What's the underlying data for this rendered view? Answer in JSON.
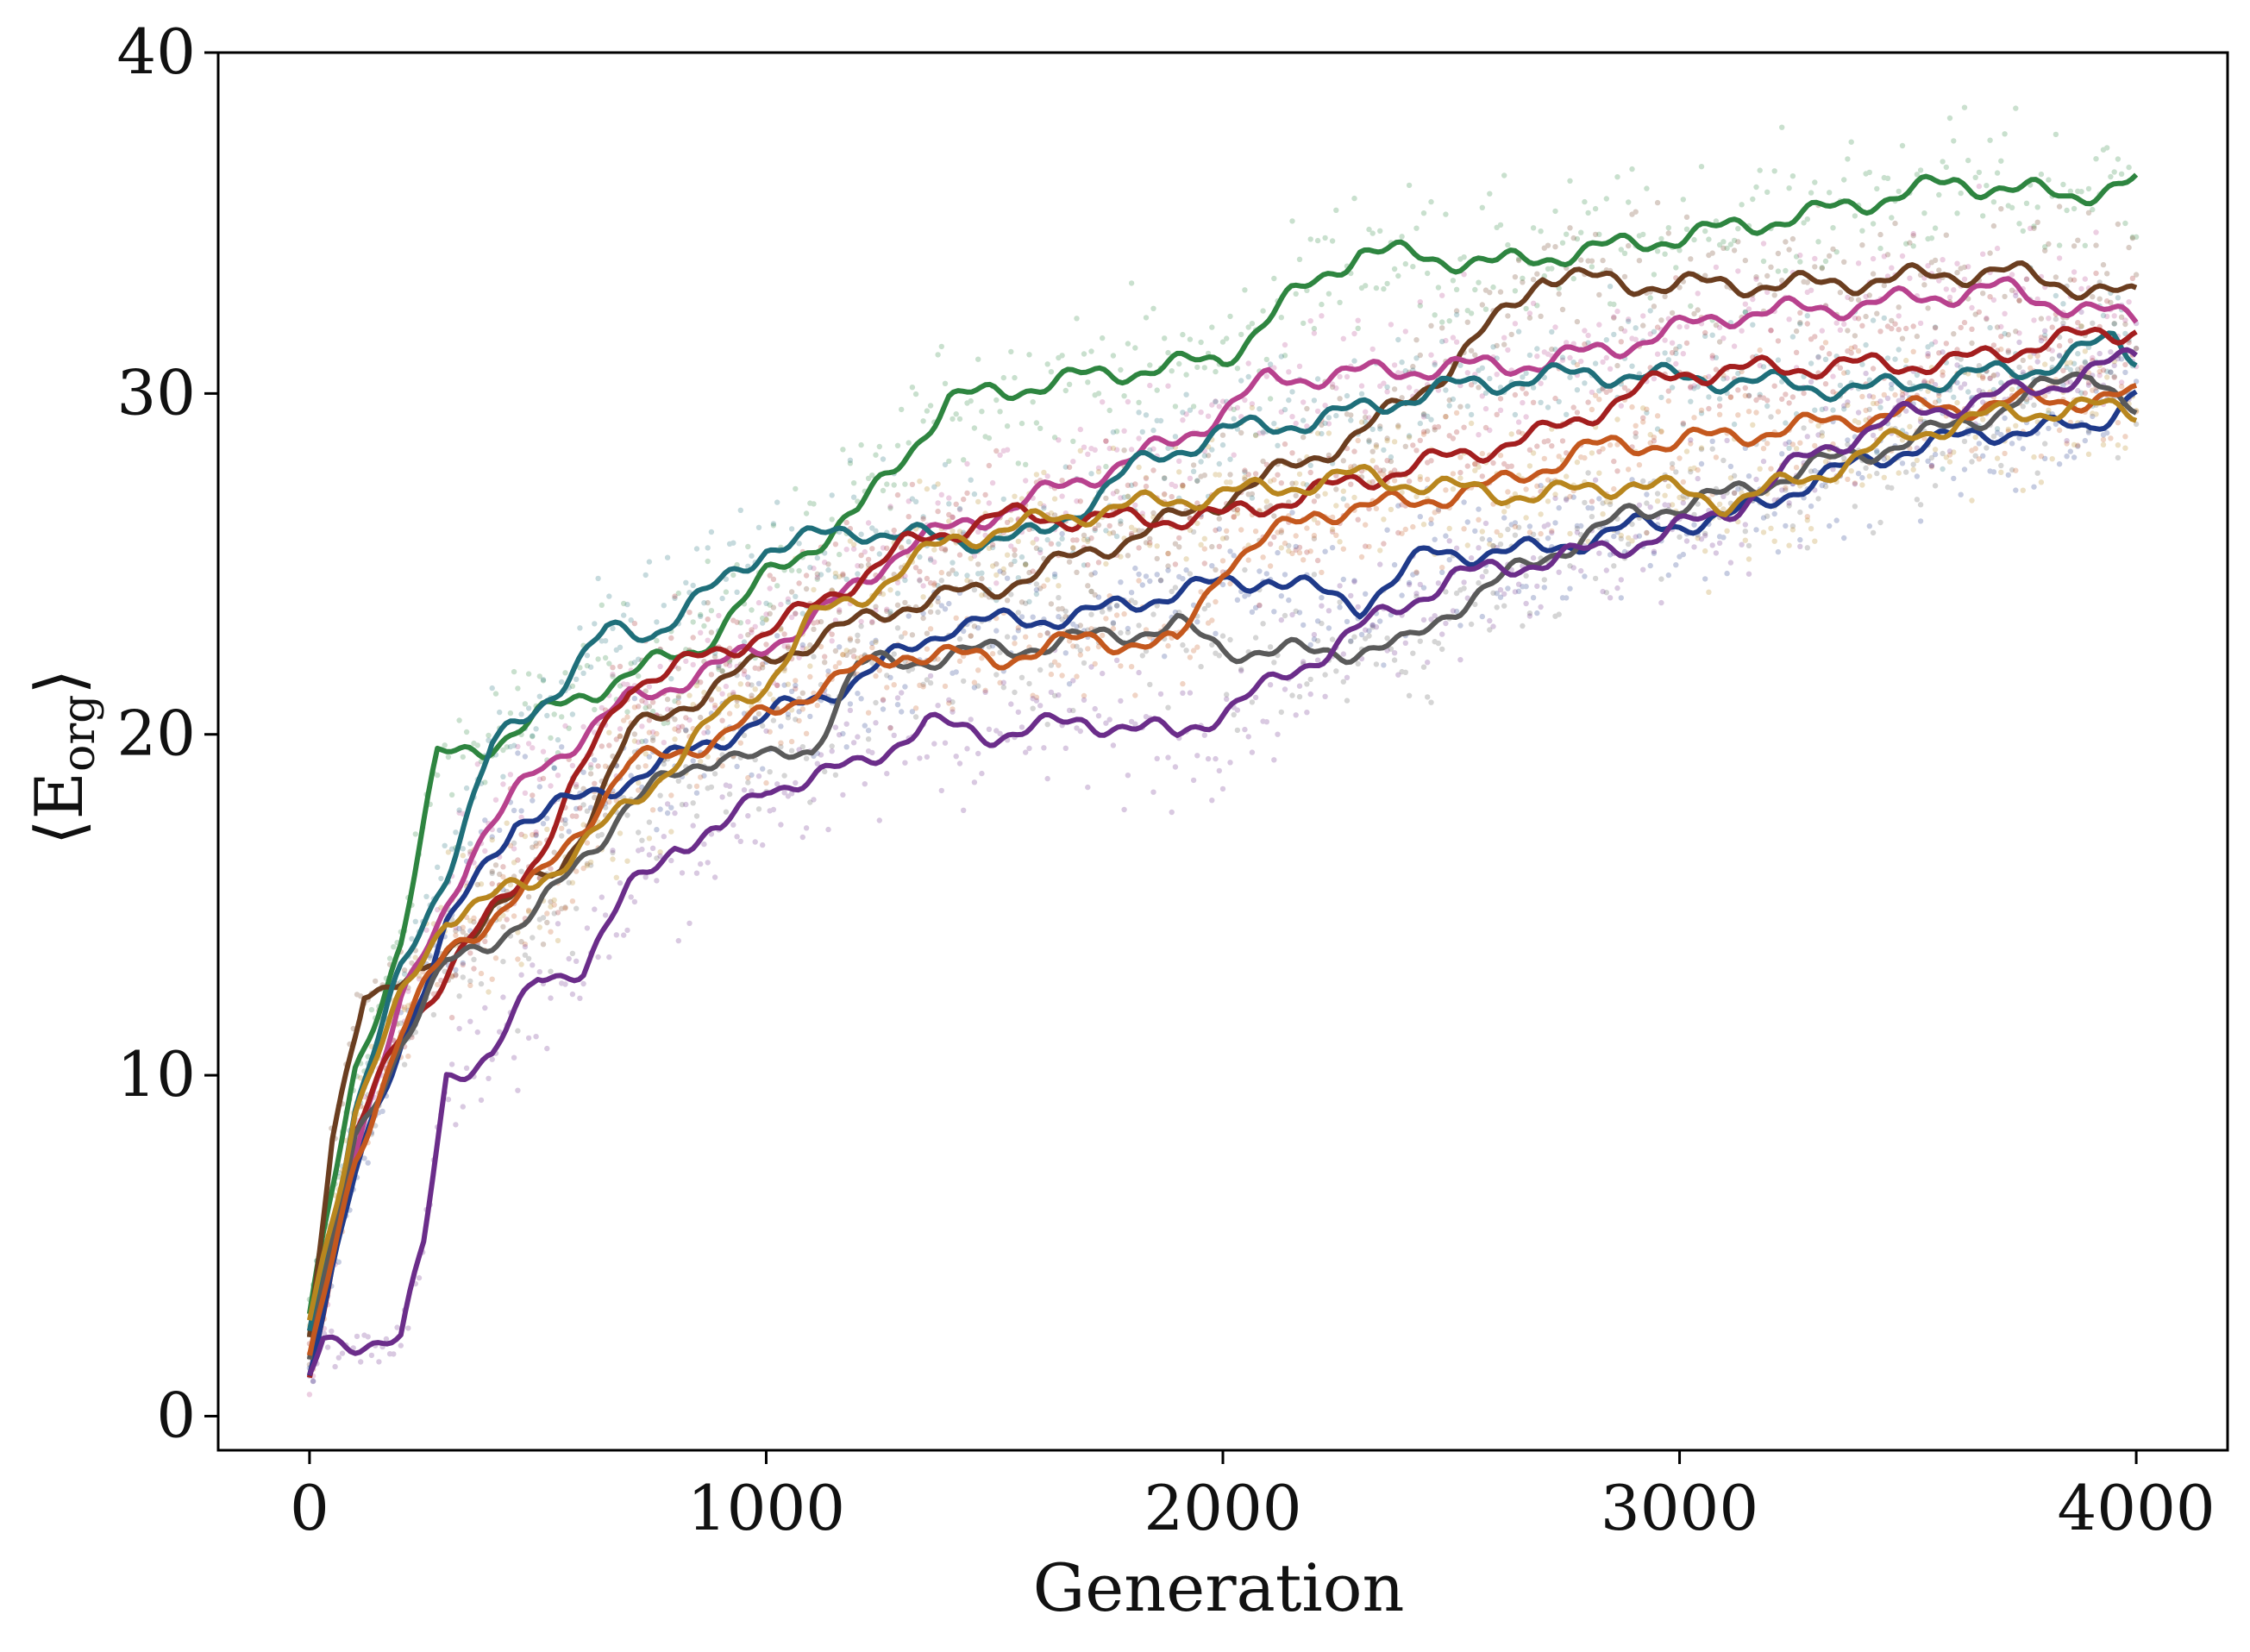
{
  "chart_data": {
    "type": "line",
    "xlabel": "Generation",
    "ylabel": "⟨E",
    "ylabel_sub": "org",
    "ylabel_close": "⟩",
    "xlim": [
      -200,
      4200
    ],
    "ylim": [
      -1,
      40
    ],
    "xticks": [
      0,
      1000,
      2000,
      3000,
      4000
    ],
    "yticks": [
      0,
      10,
      20,
      30,
      40
    ],
    "grid": false,
    "legend": "none",
    "scatter_alpha": 0.25,
    "series": [
      {
        "color": "#2e8540",
        "points": [
          [
            0,
            3
          ],
          [
            100,
            10
          ],
          [
            200,
            14
          ],
          [
            280,
            19.3
          ],
          [
            380,
            19.6
          ],
          [
            500,
            20.5
          ],
          [
            700,
            21.8
          ],
          [
            850,
            22.5
          ],
          [
            1000,
            24.6
          ],
          [
            1200,
            26.5
          ],
          [
            1400,
            29.8
          ],
          [
            1700,
            30.5
          ],
          [
            2000,
            31.0
          ],
          [
            2150,
            32.8
          ],
          [
            2300,
            34.2
          ],
          [
            2600,
            33.8
          ],
          [
            3000,
            34.6
          ],
          [
            3300,
            35.3
          ],
          [
            3600,
            36.2
          ],
          [
            3850,
            35.8
          ],
          [
            4000,
            36.2
          ]
        ]
      },
      {
        "color": "#6b3e20",
        "points": [
          [
            0,
            2
          ],
          [
            50,
            8
          ],
          [
            120,
            12.6
          ],
          [
            250,
            12.8
          ],
          [
            400,
            15
          ],
          [
            550,
            16
          ],
          [
            700,
            20
          ],
          [
            900,
            21.5
          ],
          [
            1000,
            22.2
          ],
          [
            1300,
            23.8
          ],
          [
            1500,
            24.3
          ],
          [
            1800,
            25.8
          ],
          [
            2000,
            26.9
          ],
          [
            2300,
            28.8
          ],
          [
            2500,
            30.8
          ],
          [
            2700,
            33.5
          ],
          [
            2900,
            33.2
          ],
          [
            3300,
            33.2
          ],
          [
            3700,
            33.6
          ],
          [
            4000,
            32.8
          ]
        ]
      },
      {
        "color": "#b8428e",
        "points": [
          [
            0,
            1
          ],
          [
            100,
            8
          ],
          [
            200,
            12
          ],
          [
            350,
            16.5
          ],
          [
            500,
            19
          ],
          [
            700,
            21
          ],
          [
            900,
            22
          ],
          [
            1100,
            23.3
          ],
          [
            1300,
            25.5
          ],
          [
            1600,
            27
          ],
          [
            1900,
            28.6
          ],
          [
            2100,
            30.4
          ],
          [
            2400,
            30.7
          ],
          [
            2700,
            30.9
          ],
          [
            2900,
            31.5
          ],
          [
            3100,
            32.3
          ],
          [
            3400,
            32.6
          ],
          [
            3700,
            33.1
          ],
          [
            3900,
            32.4
          ],
          [
            4000,
            32.2
          ]
        ]
      },
      {
        "color": "#1f6f7a",
        "points": [
          [
            0,
            2.5
          ],
          [
            100,
            9
          ],
          [
            200,
            13
          ],
          [
            300,
            16
          ],
          [
            400,
            19.6
          ],
          [
            550,
            21.5
          ],
          [
            650,
            23
          ],
          [
            750,
            23
          ],
          [
            900,
            24.4
          ],
          [
            1000,
            25.5
          ],
          [
            1200,
            26
          ],
          [
            1400,
            25.7
          ],
          [
            1600,
            25.8
          ],
          [
            1800,
            27.8
          ],
          [
            2000,
            28.9
          ],
          [
            2200,
            29.2
          ],
          [
            2500,
            30.2
          ],
          [
            2800,
            30.6
          ],
          [
            3100,
            30.4
          ],
          [
            3400,
            30.1
          ],
          [
            3800,
            30.8
          ],
          [
            3950,
            31.6
          ],
          [
            4000,
            31.1
          ]
        ]
      },
      {
        "color": "#a31f1f",
        "points": [
          [
            0,
            1.2
          ],
          [
            100,
            8.2
          ],
          [
            200,
            11.2
          ],
          [
            300,
            13
          ],
          [
            500,
            16.5
          ],
          [
            700,
            21.5
          ],
          [
            900,
            22.4
          ],
          [
            1100,
            23.7
          ],
          [
            1300,
            25.5
          ],
          [
            1500,
            26.4
          ],
          [
            1800,
            26.3
          ],
          [
            2000,
            26.4
          ],
          [
            2400,
            27.8
          ],
          [
            2700,
            28.8
          ],
          [
            3000,
            30.6
          ],
          [
            3300,
            30.8
          ],
          [
            3600,
            30.9
          ],
          [
            3800,
            31.5
          ],
          [
            4000,
            31.9
          ]
        ]
      },
      {
        "color": "#1f3a8a",
        "points": [
          [
            0,
            1.5
          ],
          [
            100,
            7
          ],
          [
            200,
            11
          ],
          [
            300,
            14.3
          ],
          [
            450,
            17.5
          ],
          [
            600,
            18.1
          ],
          [
            800,
            19.3
          ],
          [
            1000,
            20.5
          ],
          [
            1200,
            21.6
          ],
          [
            1400,
            23.2
          ],
          [
            1700,
            23.5
          ],
          [
            1900,
            24.2
          ],
          [
            2100,
            24.6
          ],
          [
            2300,
            23.8
          ],
          [
            2450,
            25.3
          ],
          [
            2700,
            25.4
          ],
          [
            2900,
            26.1
          ],
          [
            3100,
            26.3
          ],
          [
            3300,
            27.5
          ],
          [
            3500,
            28.4
          ],
          [
            3700,
            28.9
          ],
          [
            3900,
            29.0
          ],
          [
            4000,
            30.1
          ]
        ]
      },
      {
        "color": "#5a5a5a",
        "points": [
          [
            0,
            1.8
          ],
          [
            100,
            8
          ],
          [
            200,
            11
          ],
          [
            300,
            13.2
          ],
          [
            500,
            14.8
          ],
          [
            700,
            18
          ],
          [
            900,
            19.5
          ],
          [
            1000,
            19.2
          ],
          [
            1100,
            19.6
          ],
          [
            1200,
            22.0
          ],
          [
            1400,
            22.3
          ],
          [
            1700,
            22.8
          ],
          [
            1900,
            23.2
          ],
          [
            2000,
            22.5
          ],
          [
            2200,
            22.4
          ],
          [
            2400,
            22.6
          ],
          [
            2500,
            23.7
          ],
          [
            2700,
            25.2
          ],
          [
            2900,
            26.5
          ],
          [
            3100,
            27.0
          ],
          [
            3300,
            27.9
          ],
          [
            3500,
            28.6
          ],
          [
            3700,
            29.5
          ],
          [
            3900,
            30.8
          ],
          [
            4000,
            29.3
          ]
        ]
      },
      {
        "color": "#c4581e",
        "points": [
          [
            0,
            1.5
          ],
          [
            100,
            7.5
          ],
          [
            200,
            11.3
          ],
          [
            300,
            13.6
          ],
          [
            500,
            15.7
          ],
          [
            700,
            19.1
          ],
          [
            900,
            19.9
          ],
          [
            1100,
            21.3
          ],
          [
            1300,
            22.4
          ],
          [
            1500,
            22.2
          ],
          [
            1700,
            22.8
          ],
          [
            1900,
            22.6
          ],
          [
            2000,
            25.0
          ],
          [
            2200,
            26.5
          ],
          [
            2400,
            26.8
          ],
          [
            2600,
            27.3
          ],
          [
            2800,
            28.4
          ],
          [
            3000,
            28.6
          ],
          [
            3200,
            28.9
          ],
          [
            3500,
            29.5
          ],
          [
            3800,
            29.8
          ],
          [
            4000,
            29.9
          ]
        ]
      },
      {
        "color": "#6b2d8a",
        "points": [
          [
            0,
            1
          ],
          [
            30,
            2.2
          ],
          [
            200,
            2.2
          ],
          [
            250,
            5
          ],
          [
            300,
            10
          ],
          [
            400,
            10.6
          ],
          [
            500,
            12.8
          ],
          [
            600,
            13.2
          ],
          [
            700,
            15.4
          ],
          [
            800,
            16.8
          ],
          [
            900,
            17.1
          ],
          [
            1000,
            18.5
          ],
          [
            1100,
            18.7
          ],
          [
            1200,
            19.1
          ],
          [
            1350,
            20.3
          ],
          [
            1500,
            20.0
          ],
          [
            1700,
            20.4
          ],
          [
            1900,
            20.0
          ],
          [
            2100,
            21.4
          ],
          [
            2300,
            23.1
          ],
          [
            2500,
            24.6
          ],
          [
            2700,
            25.1
          ],
          [
            2900,
            25.6
          ],
          [
            3100,
            26.5
          ],
          [
            3300,
            28.3
          ],
          [
            3500,
            29.4
          ],
          [
            3800,
            30.2
          ],
          [
            4000,
            31.1
          ]
        ]
      },
      {
        "color": "#b8861e",
        "points": [
          [
            0,
            2.8
          ],
          [
            100,
            9
          ],
          [
            200,
            12.2
          ],
          [
            300,
            14.7
          ],
          [
            500,
            15.7
          ],
          [
            700,
            17.9
          ],
          [
            900,
            20.6
          ],
          [
            1000,
            21.5
          ],
          [
            1100,
            23.4
          ],
          [
            1200,
            24.0
          ],
          [
            1400,
            25.7
          ],
          [
            1700,
            26.5
          ],
          [
            1900,
            26.9
          ],
          [
            2100,
            27.2
          ],
          [
            2300,
            27.6
          ],
          [
            2500,
            27.2
          ],
          [
            2700,
            27.0
          ],
          [
            2900,
            27.4
          ],
          [
            3100,
            26.8
          ],
          [
            3300,
            27.6
          ],
          [
            3500,
            28.8
          ],
          [
            3700,
            29.4
          ],
          [
            3900,
            29.6
          ],
          [
            4000,
            29.5
          ]
        ]
      }
    ]
  }
}
